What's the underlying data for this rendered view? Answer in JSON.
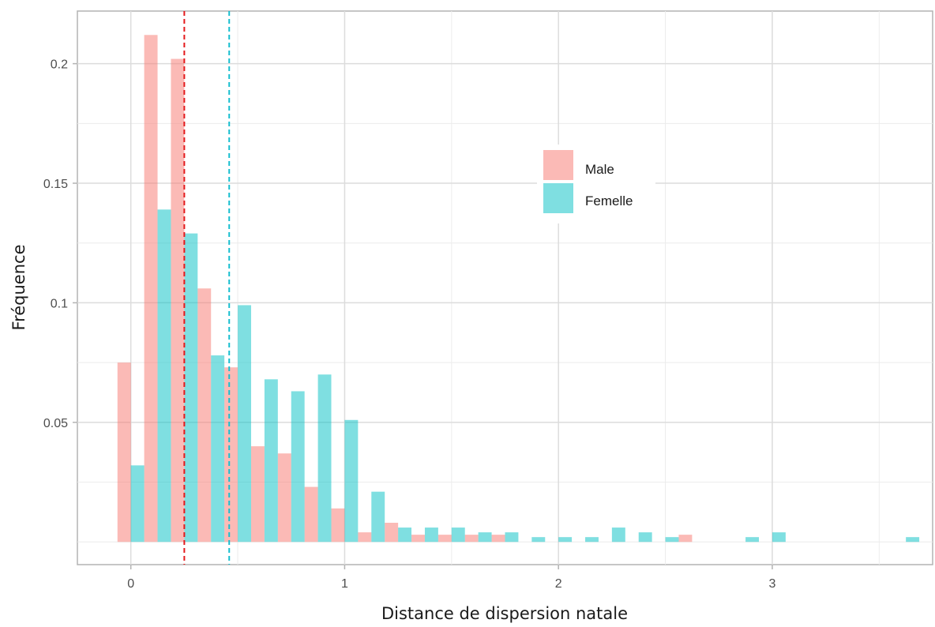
{
  "chart_data": {
    "type": "bar",
    "xlabel": "Distance de dispersion natale",
    "ylabel": "Fréquence",
    "xlim": [
      -0.25,
      3.75
    ],
    "ylim": [
      -0.0095,
      0.222
    ],
    "x_ticks": [
      {
        "value": 0,
        "label": "0"
      },
      {
        "value": 1,
        "label": "1"
      },
      {
        "value": 2,
        "label": "2"
      },
      {
        "value": 3,
        "label": "3"
      }
    ],
    "y_ticks": [
      {
        "value": 0.05,
        "label": "0.05"
      },
      {
        "value": 0.1,
        "label": "0.1"
      },
      {
        "value": 0.15,
        "label": "0.15"
      },
      {
        "value": 0.2,
        "label": "0.2"
      }
    ],
    "bin_width": 0.125,
    "x": [
      0,
      0.125,
      0.25,
      0.375,
      0.5,
      0.625,
      0.75,
      0.875,
      1.0,
      1.125,
      1.25,
      1.375,
      1.5,
      1.625,
      1.75,
      1.875,
      2.0,
      2.125,
      2.25,
      2.375,
      2.5,
      2.625,
      2.75,
      2.875,
      3.0,
      3.125,
      3.25,
      3.375,
      3.5,
      3.625
    ],
    "series": [
      {
        "name": "Male",
        "color": "#f8766d",
        "values": [
          0.075,
          0.212,
          0.202,
          0.106,
          0.073,
          0.04,
          0.037,
          0.023,
          0.014,
          0.004,
          0.008,
          0.003,
          0.003,
          0.003,
          0.003,
          0,
          0,
          0,
          0,
          0,
          0,
          0.003,
          0,
          0,
          0,
          0,
          0,
          0,
          0,
          0
        ]
      },
      {
        "name": "Femelle",
        "color": "#00bfc4",
        "values": [
          0.032,
          0.139,
          0.129,
          0.078,
          0.099,
          0.068,
          0.063,
          0.07,
          0.051,
          0.021,
          0.006,
          0.006,
          0.006,
          0.004,
          0.004,
          0.002,
          0.002,
          0.002,
          0.006,
          0.004,
          0.002,
          0,
          0,
          0.002,
          0.004,
          0,
          0,
          0,
          0,
          0.002
        ]
      }
    ],
    "vlines": [
      {
        "x": 0.25,
        "color": "#e41a1c",
        "style": "dashed"
      },
      {
        "x": 0.46,
        "color": "#17becf",
        "style": "dashed"
      }
    ],
    "grid": true,
    "legend_position": "inside-upper-center-right"
  }
}
